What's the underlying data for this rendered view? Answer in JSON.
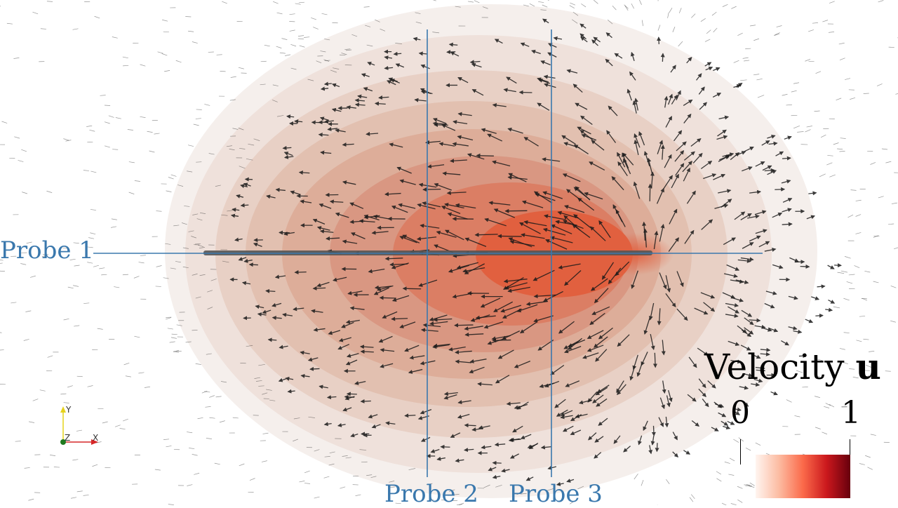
{
  "probes": [
    {
      "label": "Probe 1"
    },
    {
      "label": "Probe 2"
    },
    {
      "label": "Probe 3"
    }
  ],
  "legend": {
    "title": "Velocity",
    "variable": "u",
    "min": "0",
    "max": "1"
  },
  "axes": {
    "x": "X",
    "y": "Y",
    "z": "Z"
  },
  "colors": {
    "probe": "#3a78ad",
    "arrow": "#1a1a1a",
    "needle": "#555555",
    "contours": [
      "#f5efec",
      "#efe1db",
      "#e8d0c5",
      "#e2c0b0",
      "#ddad99",
      "#d99782",
      "#db7e64",
      "#e1603f"
    ],
    "colorbar": [
      "#fff5f0",
      "#fcbba1",
      "#fb6a4a",
      "#cb181d",
      "#67000d"
    ],
    "axis_x": "#d62728",
    "axis_y": "#e6d21a",
    "axis_z": "#1f7a1f"
  }
}
